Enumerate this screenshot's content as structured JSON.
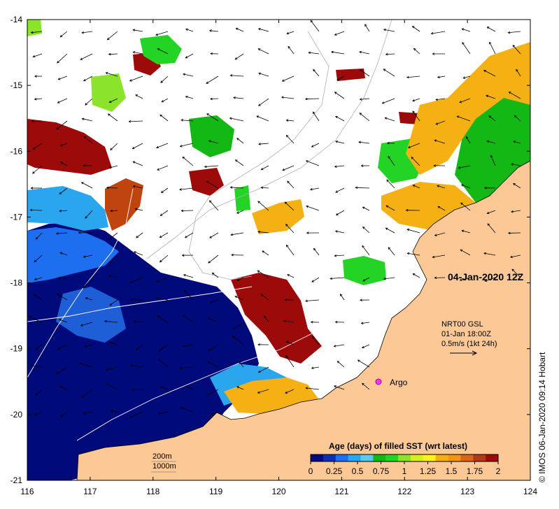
{
  "map": {
    "date_label": "04-Jan-2020 12Z",
    "longitude_ticks": [
      "116",
      "117",
      "118",
      "119",
      "120",
      "121",
      "122",
      "123",
      "124"
    ],
    "latitude_ticks": [
      "-14",
      "-15",
      "-16",
      "-17",
      "-18",
      "-19",
      "-20",
      "-21"
    ],
    "current_legend": {
      "source": "NRT00 GSL",
      "time": "01-Jan 18:00Z",
      "scale": "0.5m/s (1kt 24h)"
    },
    "argo_label": "Argo",
    "isobath_labels": [
      "200m",
      "1000m"
    ],
    "colorbar": {
      "title": "Age (days) of filled SST (wrt latest)",
      "tick_labels": [
        "0",
        "0.25",
        "0.5",
        "0.75",
        "1",
        "1.25",
        "1.5",
        "1.75",
        "2"
      ],
      "colors": [
        "#000a7a",
        "#0a2fb0",
        "#1e6ff0",
        "#2aa6ee",
        "#5cc8f0",
        "#14b814",
        "#24d424",
        "#8be42a",
        "#d6ee22",
        "#fff01e",
        "#f5b014",
        "#f09614",
        "#d8661a",
        "#b03a14",
        "#9c0a0a"
      ],
      "land_color": "#fbc896"
    },
    "credit": "© IMOS 06-Jan-2020 09:14 Hobart"
  }
}
